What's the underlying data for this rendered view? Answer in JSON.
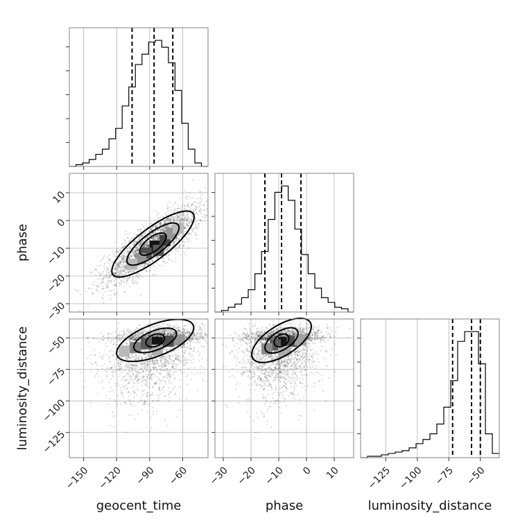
{
  "chart_data": {
    "type": "corner",
    "parameters": [
      "geocent_time",
      "phase",
      "luminosity_distance"
    ],
    "axes": {
      "geocent_time": {
        "range": [
          -163,
          -37
        ],
        "ticks": [
          -150,
          -120,
          -90,
          -60
        ],
        "tick_labels": [
          "−150",
          "−120",
          "−90",
          "−60"
        ]
      },
      "phase": {
        "range": [
          -33,
          17
        ],
        "ticks": [
          -30,
          -20,
          -10,
          0,
          10
        ],
        "tick_labels": [
          "−30",
          "−20",
          "−10",
          "0",
          "10"
        ]
      },
      "luminosity_distance": {
        "range": [
          -145,
          -35
        ],
        "ticks": [
          -125,
          -100,
          -75,
          -50
        ],
        "tick_labels": [
          "−125",
          "−100",
          "−75",
          "−50"
        ]
      }
    },
    "marginals": [
      {
        "param": "geocent_time",
        "bins": [
          -163,
          -157,
          -151,
          -145,
          -139,
          -133,
          -127,
          -121,
          -115,
          -109,
          -103,
          -97,
          -91,
          -85,
          -79,
          -73,
          -67,
          -61,
          -55,
          -49,
          -43,
          -37
        ],
        "counts": [
          0,
          1,
          2,
          4,
          7,
          10,
          16,
          22,
          35,
          46,
          59,
          65,
          72,
          73,
          69,
          60,
          44,
          25,
          10,
          2,
          0
        ],
        "quantiles": [
          -106,
          -86,
          -69
        ]
      },
      {
        "param": "phase",
        "bins": [
          -33,
          -30.6,
          -28.2,
          -25.8,
          -23.4,
          -21,
          -18.6,
          -16.2,
          -13.8,
          -11.4,
          -9,
          -6.6,
          -4.2,
          -1.8,
          0.6,
          3,
          5.4,
          7.8,
          10.2,
          12.6,
          15,
          17
        ],
        "counts": [
          0,
          1,
          3,
          5,
          9,
          14,
          24,
          38,
          58,
          75,
          79,
          70,
          52,
          36,
          24,
          15,
          9,
          6,
          3,
          2,
          0
        ],
        "quantiles": [
          -15,
          -9,
          -2
        ]
      },
      {
        "param": "luminosity_distance",
        "bins": [
          -145,
          -139.5,
          -134,
          -128.5,
          -123,
          -117.5,
          -112,
          -106.5,
          -101,
          -95.5,
          -90,
          -84.5,
          -79,
          -73.5,
          -68,
          -62.5,
          -57,
          -51.5,
          -46,
          -40.5,
          -35
        ],
        "counts": [
          0,
          1,
          1,
          2,
          3,
          4,
          5,
          7,
          10,
          13,
          17,
          24,
          36,
          55,
          83,
          90,
          90,
          67,
          17,
          3
        ],
        "quantiles": [
          -72,
          -57,
          -50
        ]
      }
    ],
    "pairs": [
      {
        "x": "geocent_time",
        "y": "phase",
        "peak": [
          -87,
          -8.5
        ]
      },
      {
        "x": "geocent_time",
        "y": "luminosity_distance",
        "peak": [
          -85,
          -52
        ]
      },
      {
        "x": "phase",
        "y": "luminosity_distance",
        "peak": [
          -9,
          -52
        ]
      }
    ],
    "grid": true
  }
}
